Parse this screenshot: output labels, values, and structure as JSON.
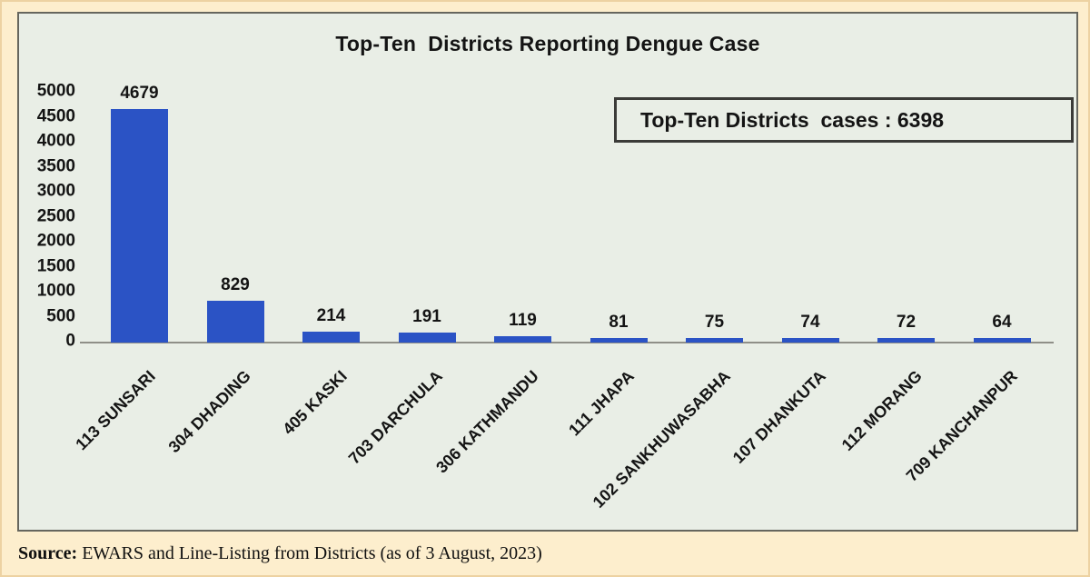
{
  "chart_data": {
    "type": "bar",
    "title": "Top-Ten  Districts Reporting Dengue Case",
    "categories": [
      "113 SUNSARI",
      "304 DHADING",
      "405 KASKI",
      "703 DARCHULA",
      "306 KATHMANDU",
      "111 JHAPA",
      "102 SANKHUWASABHA",
      "107 DHANKUTA",
      "112 MORANG",
      "709 KANCHANPUR"
    ],
    "values": [
      4679,
      829,
      214,
      191,
      119,
      81,
      75,
      74,
      72,
      64
    ],
    "yticks": [
      0,
      500,
      1000,
      1500,
      2000,
      2500,
      3000,
      3500,
      4000,
      4500,
      5000
    ],
    "ylim": [
      0,
      5000
    ],
    "grid": false,
    "legend": false,
    "data_labels": true,
    "bar_color": "#2b53c5",
    "annotation": "Top-Ten Districts  cases : 6398",
    "total_cases": 6398
  },
  "annotation_box": {
    "text": "Top-Ten Districts  cases : 6398"
  },
  "source": {
    "prefix": "Source:",
    "text": " EWARS and Line-Listing from Districts (as of 3 August, 2023)"
  },
  "colors": {
    "page_bg": "#fdeecd",
    "panel_bg": "#e9eee6",
    "panel_border": "#66665e",
    "bar": "#2b53c5",
    "axis_line": "#8f8f88",
    "annotation_border": "#3b3b38",
    "frame_border": "#edd2a2",
    "text": "#141414"
  }
}
